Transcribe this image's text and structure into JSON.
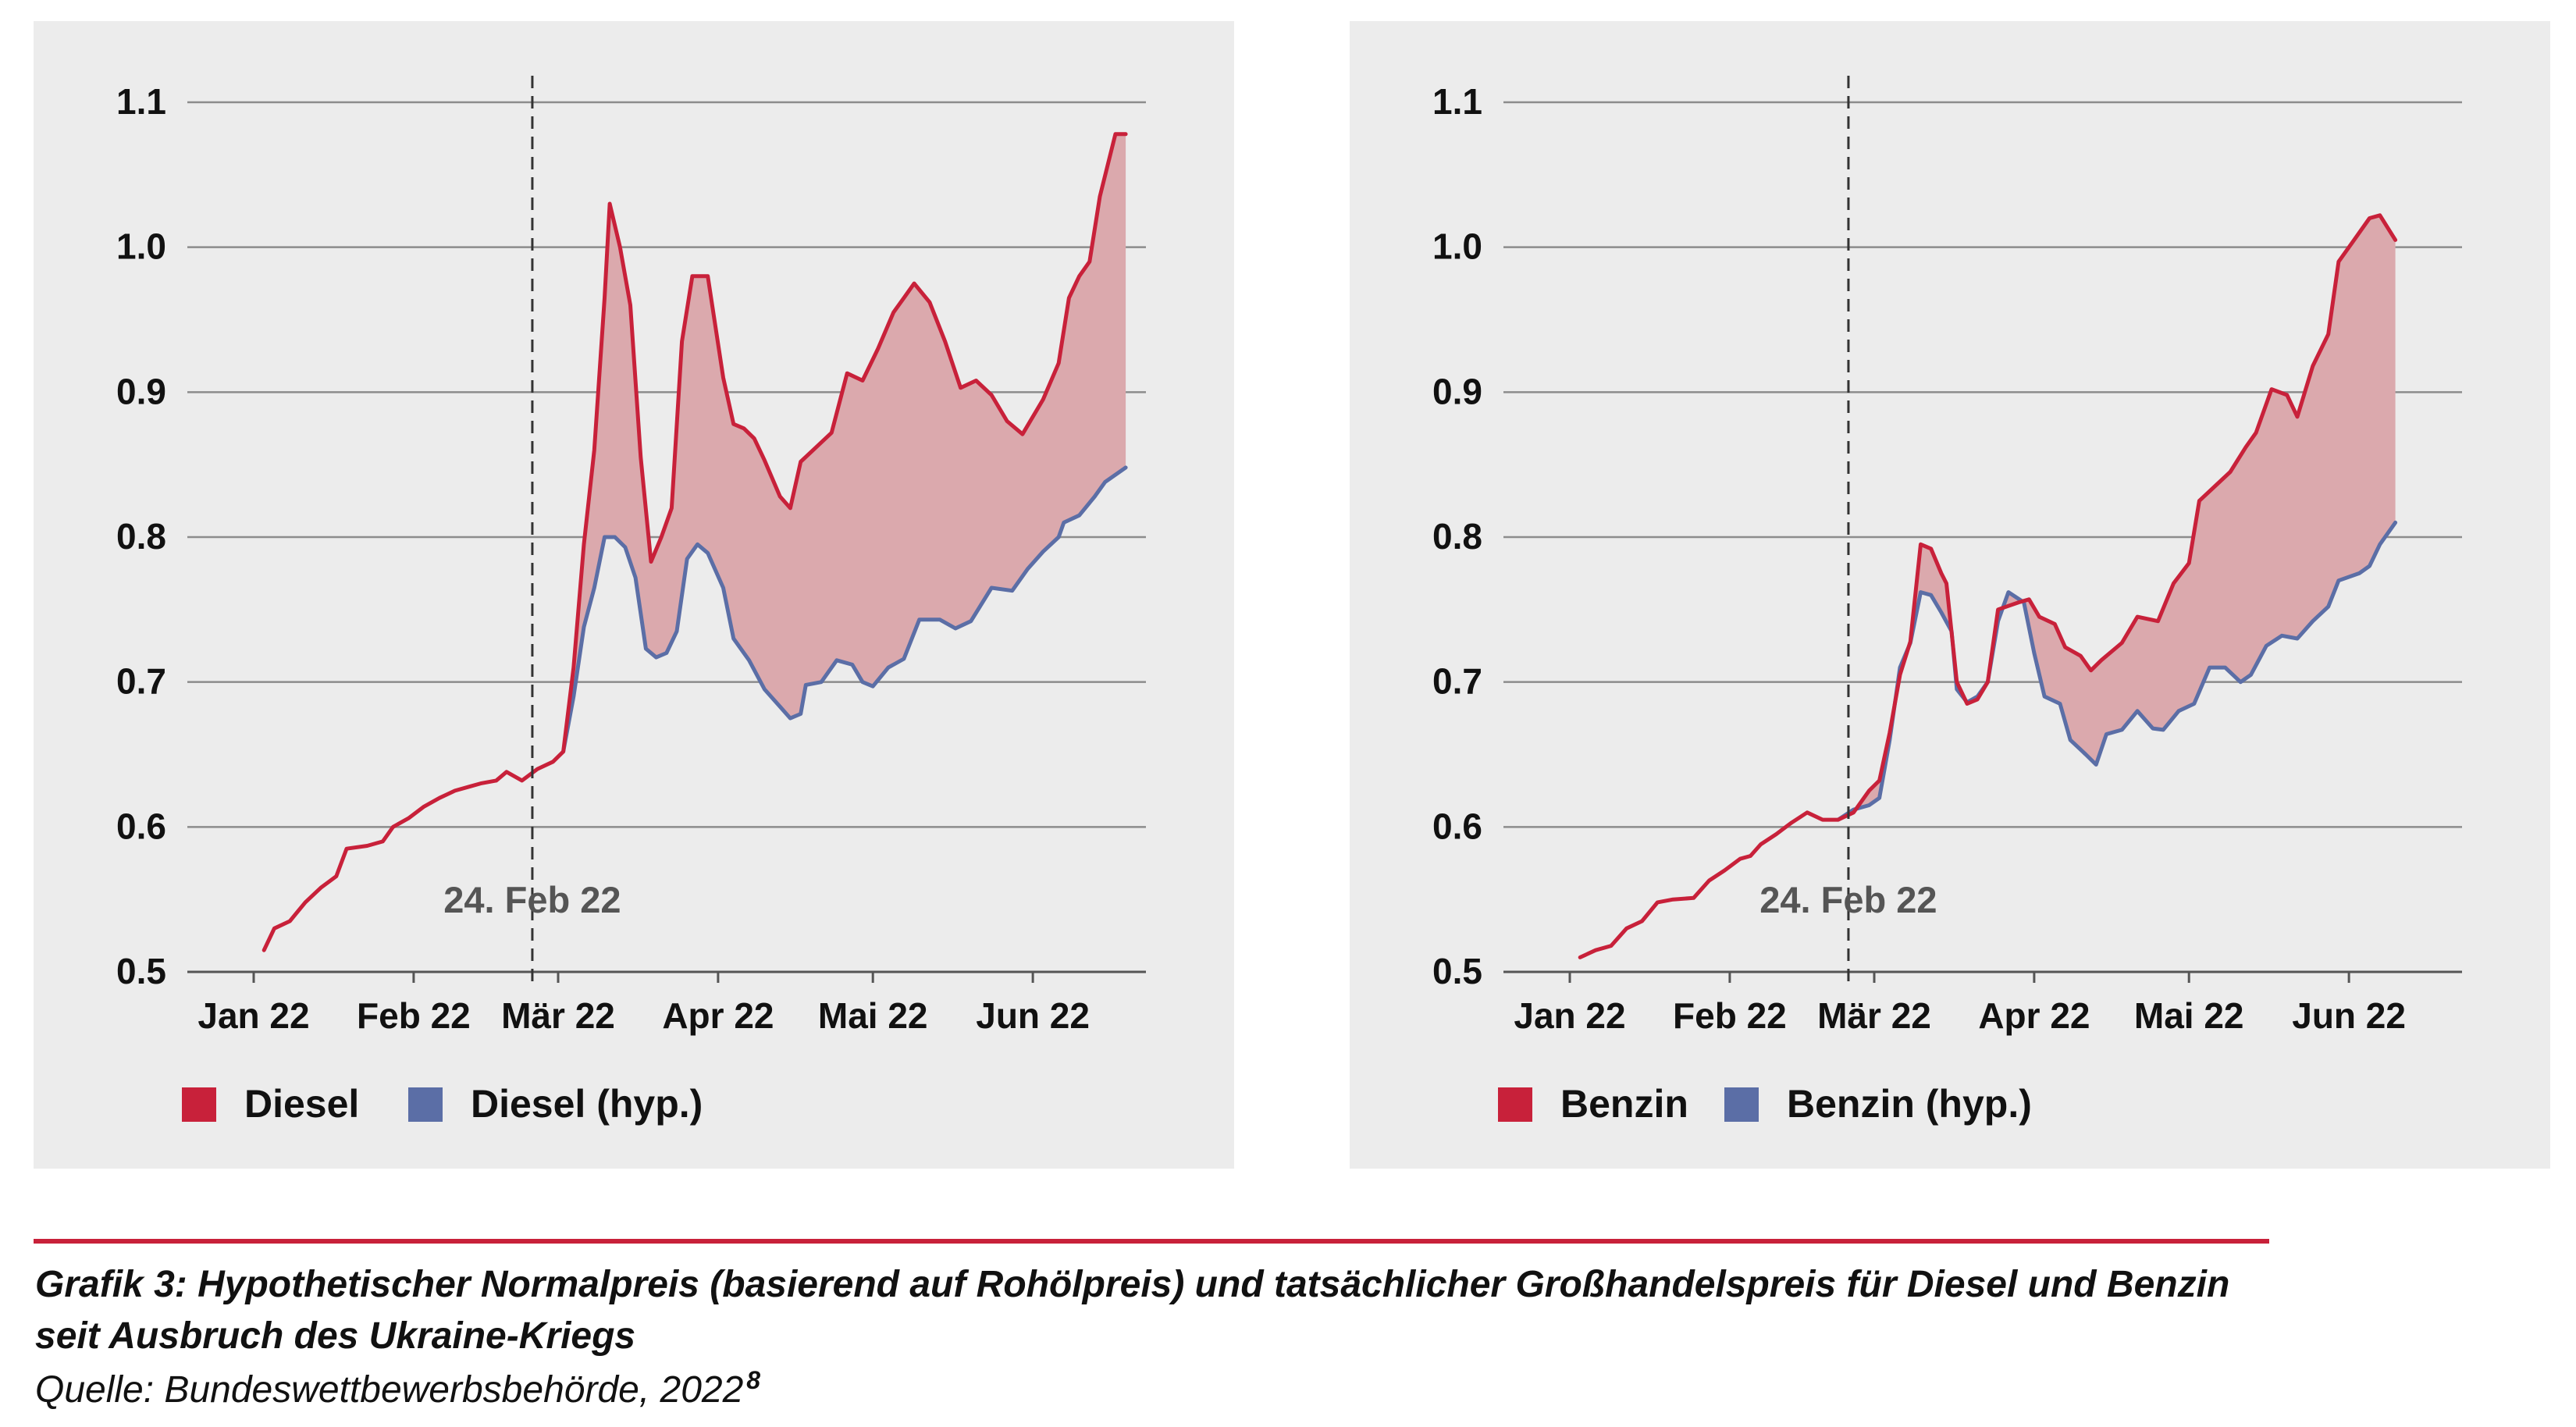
{
  "chart_data": [
    {
      "type": "line",
      "x_axis": {
        "ticks": [
          "Jan 22",
          "Feb 22",
          "Mär 22",
          "Apr 22",
          "Mai 22",
          "Jun 22"
        ]
      },
      "y_axis": {
        "ticks": [
          "0.5",
          "0.6",
          "0.7",
          "0.8",
          "0.9",
          "1.0",
          "1.1"
        ],
        "ylim": [
          0.5,
          1.1
        ]
      },
      "grid": "horizontal",
      "event_marker": {
        "label": "24. Feb 22",
        "date": "2022-02-24",
        "style": "dashed vertical line"
      },
      "legend": {
        "placement": "bottom-left"
      },
      "fill_between_series": true,
      "series": [
        {
          "name": "Diesel",
          "color": "#c8213a",
          "points": [
            [
              "2022-01-03",
              0.515
            ],
            [
              "2022-01-05",
              0.53
            ],
            [
              "2022-01-08",
              0.535
            ],
            [
              "2022-01-11",
              0.548
            ],
            [
              "2022-01-14",
              0.558
            ],
            [
              "2022-01-17",
              0.566
            ],
            [
              "2022-01-19",
              0.585
            ],
            [
              "2022-01-23",
              0.587
            ],
            [
              "2022-01-26",
              0.59
            ],
            [
              "2022-01-28",
              0.6
            ],
            [
              "2022-01-31",
              0.606
            ],
            [
              "2022-02-03",
              0.614
            ],
            [
              "2022-02-06",
              0.62
            ],
            [
              "2022-02-09",
              0.625
            ],
            [
              "2022-02-12",
              0.628
            ],
            [
              "2022-02-14",
              0.63
            ],
            [
              "2022-02-17",
              0.632
            ],
            [
              "2022-02-19",
              0.638
            ],
            [
              "2022-02-22",
              0.632
            ],
            [
              "2022-02-25",
              0.64
            ],
            [
              "2022-02-28",
              0.645
            ],
            [
              "2022-03-02",
              0.652
            ],
            [
              "2022-03-04",
              0.71
            ],
            [
              "2022-03-06",
              0.795
            ],
            [
              "2022-03-08",
              0.86
            ],
            [
              "2022-03-10",
              0.965
            ],
            [
              "2022-03-11",
              1.03
            ],
            [
              "2022-03-13",
              1.0
            ],
            [
              "2022-03-15",
              0.96
            ],
            [
              "2022-03-17",
              0.855
            ],
            [
              "2022-03-19",
              0.783
            ],
            [
              "2022-03-21",
              0.8
            ],
            [
              "2022-03-23",
              0.82
            ],
            [
              "2022-03-25",
              0.935
            ],
            [
              "2022-03-27",
              0.98
            ],
            [
              "2022-03-30",
              0.98
            ],
            [
              "2022-04-02",
              0.91
            ],
            [
              "2022-04-04",
              0.878
            ],
            [
              "2022-04-06",
              0.875
            ],
            [
              "2022-04-08",
              0.868
            ],
            [
              "2022-04-10",
              0.853
            ],
            [
              "2022-04-13",
              0.828
            ],
            [
              "2022-04-15",
              0.82
            ],
            [
              "2022-04-17",
              0.852
            ],
            [
              "2022-04-20",
              0.862
            ],
            [
              "2022-04-23",
              0.872
            ],
            [
              "2022-04-26",
              0.913
            ],
            [
              "2022-04-29",
              0.908
            ],
            [
              "2022-05-02",
              0.93
            ],
            [
              "2022-05-05",
              0.955
            ],
            [
              "2022-05-07",
              0.965
            ],
            [
              "2022-05-09",
              0.975
            ],
            [
              "2022-05-12",
              0.962
            ],
            [
              "2022-05-15",
              0.935
            ],
            [
              "2022-05-18",
              0.903
            ],
            [
              "2022-05-21",
              0.908
            ],
            [
              "2022-05-24",
              0.898
            ],
            [
              "2022-05-27",
              0.88
            ],
            [
              "2022-05-30",
              0.871
            ],
            [
              "2022-06-03",
              0.895
            ],
            [
              "2022-06-06",
              0.92
            ],
            [
              "2022-06-08",
              0.965
            ],
            [
              "2022-06-10",
              0.98
            ],
            [
              "2022-06-12",
              0.99
            ],
            [
              "2022-06-14",
              1.035
            ],
            [
              "2022-06-17",
              1.078
            ],
            [
              "2022-06-19",
              1.078
            ]
          ]
        },
        {
          "name": "Diesel (hyp.)",
          "color": "#5b6ea6",
          "points": [
            [
              "2022-03-02",
              0.652
            ],
            [
              "2022-03-04",
              0.69
            ],
            [
              "2022-03-06",
              0.738
            ],
            [
              "2022-03-08",
              0.765
            ],
            [
              "2022-03-10",
              0.8
            ],
            [
              "2022-03-12",
              0.8
            ],
            [
              "2022-03-14",
              0.793
            ],
            [
              "2022-03-16",
              0.772
            ],
            [
              "2022-03-18",
              0.723
            ],
            [
              "2022-03-20",
              0.717
            ],
            [
              "2022-03-22",
              0.72
            ],
            [
              "2022-03-24",
              0.735
            ],
            [
              "2022-03-26",
              0.785
            ],
            [
              "2022-03-28",
              0.795
            ],
            [
              "2022-03-30",
              0.789
            ],
            [
              "2022-04-02",
              0.765
            ],
            [
              "2022-04-04",
              0.73
            ],
            [
              "2022-04-07",
              0.715
            ],
            [
              "2022-04-10",
              0.695
            ],
            [
              "2022-04-13",
              0.683
            ],
            [
              "2022-04-15",
              0.675
            ],
            [
              "2022-04-17",
              0.678
            ],
            [
              "2022-04-18",
              0.698
            ],
            [
              "2022-04-21",
              0.7
            ],
            [
              "2022-04-24",
              0.715
            ],
            [
              "2022-04-27",
              0.712
            ],
            [
              "2022-04-29",
              0.7
            ],
            [
              "2022-05-01",
              0.697
            ],
            [
              "2022-05-04",
              0.71
            ],
            [
              "2022-05-07",
              0.716
            ],
            [
              "2022-05-10",
              0.743
            ],
            [
              "2022-05-14",
              0.743
            ],
            [
              "2022-05-17",
              0.737
            ],
            [
              "2022-05-20",
              0.742
            ],
            [
              "2022-05-24",
              0.765
            ],
            [
              "2022-05-28",
              0.763
            ],
            [
              "2022-05-31",
              0.778
            ],
            [
              "2022-06-03",
              0.79
            ],
            [
              "2022-06-06",
              0.8
            ],
            [
              "2022-06-07",
              0.81
            ],
            [
              "2022-06-10",
              0.815
            ],
            [
              "2022-06-13",
              0.828
            ],
            [
              "2022-06-15",
              0.838
            ],
            [
              "2022-06-19",
              0.848
            ]
          ]
        }
      ]
    },
    {
      "type": "line",
      "x_axis": {
        "ticks": [
          "Jan 22",
          "Feb 22",
          "Mär 22",
          "Apr 22",
          "Mai 22",
          "Jun 22"
        ]
      },
      "y_axis": {
        "ticks": [
          "0.5",
          "0.6",
          "0.7",
          "0.8",
          "0.9",
          "1.0",
          "1.1"
        ],
        "ylim": [
          0.5,
          1.1
        ]
      },
      "grid": "horizontal",
      "event_marker": {
        "label": "24. Feb 22",
        "date": "2022-02-24",
        "style": "dashed vertical line"
      },
      "legend": {
        "placement": "bottom-left"
      },
      "fill_between_series": true,
      "series": [
        {
          "name": "Benzin",
          "color": "#c8213a",
          "points": [
            [
              "2022-01-03",
              0.51
            ],
            [
              "2022-01-06",
              0.515
            ],
            [
              "2022-01-09",
              0.518
            ],
            [
              "2022-01-12",
              0.53
            ],
            [
              "2022-01-15",
              0.535
            ],
            [
              "2022-01-18",
              0.548
            ],
            [
              "2022-01-21",
              0.55
            ],
            [
              "2022-01-25",
              0.551
            ],
            [
              "2022-01-28",
              0.563
            ],
            [
              "2022-01-31",
              0.57
            ],
            [
              "2022-02-03",
              0.578
            ],
            [
              "2022-02-05",
              0.58
            ],
            [
              "2022-02-07",
              0.588
            ],
            [
              "2022-02-10",
              0.595
            ],
            [
              "2022-02-13",
              0.603
            ],
            [
              "2022-02-16",
              0.61
            ],
            [
              "2022-02-19",
              0.605
            ],
            [
              "2022-02-22",
              0.605
            ],
            [
              "2022-02-25",
              0.61
            ],
            [
              "2022-02-28",
              0.625
            ],
            [
              "2022-03-02",
              0.632
            ],
            [
              "2022-03-04",
              0.665
            ],
            [
              "2022-03-06",
              0.705
            ],
            [
              "2022-03-08",
              0.728
            ],
            [
              "2022-03-10",
              0.795
            ],
            [
              "2022-03-12",
              0.792
            ],
            [
              "2022-03-14",
              0.775
            ],
            [
              "2022-03-15",
              0.768
            ],
            [
              "2022-03-17",
              0.7
            ],
            [
              "2022-03-19",
              0.685
            ],
            [
              "2022-03-21",
              0.688
            ],
            [
              "2022-03-23",
              0.7
            ],
            [
              "2022-03-25",
              0.75
            ],
            [
              "2022-03-29",
              0.755
            ],
            [
              "2022-03-31",
              0.757
            ],
            [
              "2022-04-02",
              0.745
            ],
            [
              "2022-04-05",
              0.74
            ],
            [
              "2022-04-07",
              0.724
            ],
            [
              "2022-04-10",
              0.718
            ],
            [
              "2022-04-12",
              0.708
            ],
            [
              "2022-04-14",
              0.715
            ],
            [
              "2022-04-18",
              0.727
            ],
            [
              "2022-04-21",
              0.745
            ],
            [
              "2022-04-25",
              0.742
            ],
            [
              "2022-04-28",
              0.768
            ],
            [
              "2022-05-01",
              0.782
            ],
            [
              "2022-05-03",
              0.825
            ],
            [
              "2022-05-06",
              0.835
            ],
            [
              "2022-05-09",
              0.845
            ],
            [
              "2022-05-12",
              0.862
            ],
            [
              "2022-05-14",
              0.872
            ],
            [
              "2022-05-17",
              0.902
            ],
            [
              "2022-05-20",
              0.898
            ],
            [
              "2022-05-22",
              0.883
            ],
            [
              "2022-05-25",
              0.918
            ],
            [
              "2022-05-28",
              0.94
            ],
            [
              "2022-05-30",
              0.99
            ],
            [
              "2022-06-02",
              1.005
            ],
            [
              "2022-06-05",
              1.02
            ],
            [
              "2022-06-07",
              1.022
            ],
            [
              "2022-06-10",
              1.005
            ]
          ]
        },
        {
          "name": "Benzin (hyp.)",
          "color": "#5b6ea6",
          "points": [
            [
              "2022-02-22",
              0.605
            ],
            [
              "2022-02-25",
              0.612
            ],
            [
              "2022-02-28",
              0.615
            ],
            [
              "2022-03-02",
              0.62
            ],
            [
              "2022-03-04",
              0.66
            ],
            [
              "2022-03-06",
              0.71
            ],
            [
              "2022-03-08",
              0.727
            ],
            [
              "2022-03-10",
              0.762
            ],
            [
              "2022-03-12",
              0.76
            ],
            [
              "2022-03-14",
              0.748
            ],
            [
              "2022-03-16",
              0.735
            ],
            [
              "2022-03-17",
              0.695
            ],
            [
              "2022-03-19",
              0.686
            ],
            [
              "2022-03-21",
              0.69
            ],
            [
              "2022-03-23",
              0.7
            ],
            [
              "2022-03-25",
              0.742
            ],
            [
              "2022-03-27",
              0.762
            ],
            [
              "2022-03-30",
              0.755
            ],
            [
              "2022-04-01",
              0.72
            ],
            [
              "2022-04-03",
              0.69
            ],
            [
              "2022-04-06",
              0.685
            ],
            [
              "2022-04-08",
              0.66
            ],
            [
              "2022-04-11",
              0.65
            ],
            [
              "2022-04-13",
              0.643
            ],
            [
              "2022-04-15",
              0.664
            ],
            [
              "2022-04-18",
              0.667
            ],
            [
              "2022-04-21",
              0.68
            ],
            [
              "2022-04-24",
              0.668
            ],
            [
              "2022-04-26",
              0.667
            ],
            [
              "2022-04-29",
              0.68
            ],
            [
              "2022-05-02",
              0.685
            ],
            [
              "2022-05-05",
              0.71
            ],
            [
              "2022-05-08",
              0.71
            ],
            [
              "2022-05-11",
              0.7
            ],
            [
              "2022-05-13",
              0.705
            ],
            [
              "2022-05-16",
              0.725
            ],
            [
              "2022-05-19",
              0.732
            ],
            [
              "2022-05-22",
              0.73
            ],
            [
              "2022-05-25",
              0.742
            ],
            [
              "2022-05-28",
              0.752
            ],
            [
              "2022-05-30",
              0.77
            ],
            [
              "2022-06-03",
              0.775
            ],
            [
              "2022-06-05",
              0.78
            ],
            [
              "2022-06-07",
              0.795
            ],
            [
              "2022-06-10",
              0.81
            ]
          ]
        }
      ]
    }
  ],
  "caption": {
    "title_line1": "Grafik 3: Hypothetischer Normalpreis (basierend auf Rohölpreis) und tatsächlicher Großhandelspreis für Diesel und Benzin",
    "title_line2": "seit Ausbruch des Ukraine-Kriegs",
    "source": "Quelle: Bundeswettbewerbsbehörde, 2022",
    "footnote_ref": "8"
  },
  "colors": {
    "actual": "#c8213a",
    "hypothetical": "#5b6ea6",
    "fill": "#dba9ad",
    "panel_bg": "#ececec",
    "grid": "#8c8c8c",
    "accent_rule": "#c8213a"
  }
}
